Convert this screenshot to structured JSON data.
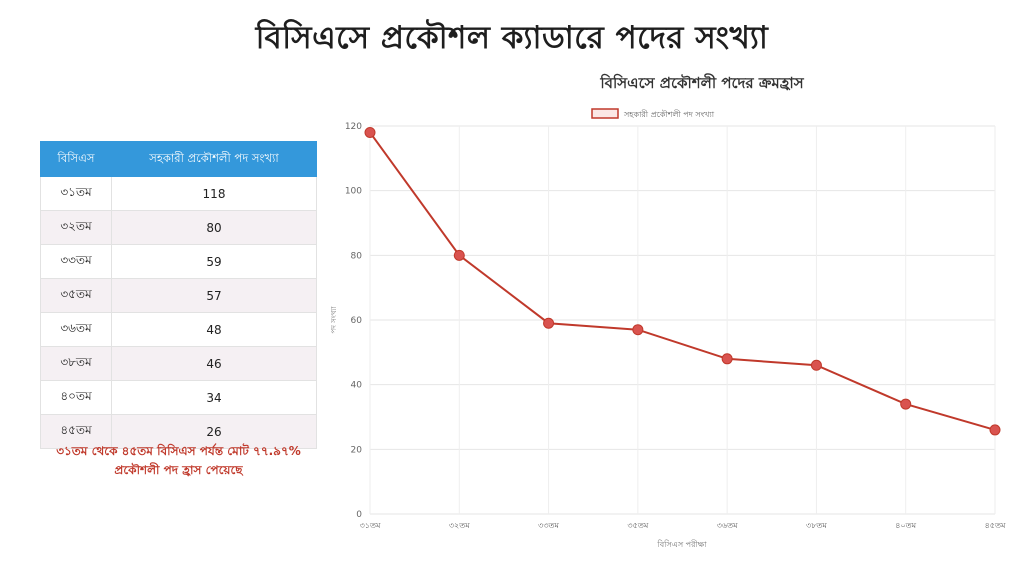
{
  "page": {
    "title": "বিসিএসে প্রকৌশল ক্যাডারে পদের সংখ্যা"
  },
  "table": {
    "headers": [
      "বিসিএস",
      "সহকারী প্রকৌশলী পদ সংখ্যা"
    ],
    "rows": [
      [
        "৩১তম",
        "118"
      ],
      [
        "৩২তম",
        "80"
      ],
      [
        "৩৩তম",
        "59"
      ],
      [
        "৩৫তম",
        "57"
      ],
      [
        "৩৬তম",
        "48"
      ],
      [
        "৩৮তম",
        "46"
      ],
      [
        "৪০তম",
        "34"
      ],
      [
        "৪৫তম",
        "26"
      ]
    ]
  },
  "note": {
    "line1": "৩১তম থেকে ৪৫তম বিসিএস পর্যন্ত মোট ৭৭.৯৭%",
    "line2": "প্রকৌশলী পদ হ্রাস পেয়েছে"
  },
  "chart_data": {
    "type": "line",
    "title": "বিসিএসে প্রকৌশলী পদের ক্রমহ্রাস",
    "xlabel": "বিসিএস পরীক্ষা",
    "ylabel": "পদ সংখ্যা",
    "categories": [
      "৩১তম",
      "৩২তম",
      "৩৩তম",
      "৩৫তম",
      "৩৬তম",
      "৩৮তম",
      "৪০তম",
      "৪৫তম"
    ],
    "series": [
      {
        "name": "সহকারী প্রকৌশলী পদ সংখ্যা",
        "values": [
          118,
          80,
          59,
          57,
          48,
          46,
          34,
          26
        ]
      }
    ],
    "ylim": [
      0,
      120
    ],
    "yticks": [
      0,
      20,
      40,
      60,
      80,
      100,
      120
    ],
    "grid": true,
    "legend": "top-center",
    "colors": {
      "line": "#c0392b",
      "point": "#d9534f"
    }
  }
}
